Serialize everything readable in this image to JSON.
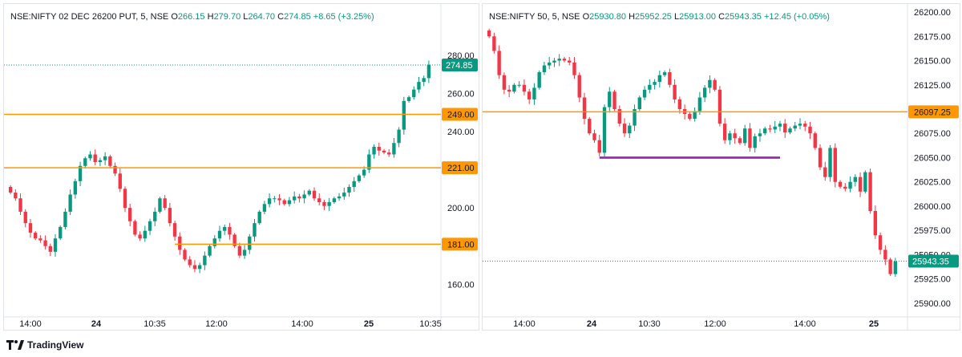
{
  "brand": {
    "name": "TradingView",
    "icon": "tradingview-logo-icon"
  },
  "colors": {
    "up": "#089981",
    "down": "#f23645",
    "level": "#ff9800",
    "axis_text": "#131722",
    "purple": "#9c27b0",
    "purple_fill": "#7e57c2"
  },
  "chart_data": [
    {
      "type": "candlestick",
      "legend": {
        "symbol": "NSE:NIFTY 02 DEC 26200 PUT, 5, NSE",
        "o_label": "O",
        "o": "266.15",
        "h_label": "H",
        "h": "279.70",
        "l_label": "L",
        "l": "264.70",
        "c_label": "C",
        "c": "274.85",
        "change": "+8.65 (+3.25%)"
      },
      "y_ticks": [
        "280.00",
        "260.00",
        "240.00",
        "220.00",
        "200.00",
        "180.00",
        "160.00"
      ],
      "ylim": [
        145,
        290
      ],
      "x_labels": [
        "14:00",
        "24",
        "10:35",
        "12:00",
        "14:00",
        "25",
        "10:35"
      ],
      "last_price": "274.85",
      "levels": [
        {
          "value": 249.0,
          "label": "249.00",
          "full": true
        },
        {
          "value": 221.0,
          "label": "221.00",
          "full": true
        },
        {
          "value": 181.0,
          "label": "181.00",
          "full": false
        }
      ],
      "closes": [
        208,
        205,
        198,
        192,
        187,
        184,
        183,
        180,
        177,
        184,
        190,
        198,
        207,
        214,
        222,
        226,
        228,
        224,
        225,
        227,
        222,
        218,
        210,
        200,
        193,
        186,
        184,
        188,
        193,
        198,
        205,
        200,
        192,
        185,
        178,
        173,
        170,
        168,
        170,
        175,
        180,
        184,
        188,
        190,
        186,
        180,
        175,
        178,
        185,
        192,
        198,
        202,
        205,
        205,
        204,
        202,
        204,
        206,
        205,
        207,
        209,
        205,
        203,
        201,
        203,
        205,
        206,
        208,
        211,
        214,
        217,
        220,
        228,
        232,
        230,
        229,
        228,
        234,
        241,
        256,
        258,
        262,
        266,
        268,
        275
      ]
    },
    {
      "type": "candlestick",
      "legend": {
        "symbol": "NSE:NIFTY 50, 5, NSE",
        "o_label": "O",
        "o": "25930.80",
        "h_label": "H",
        "h": "25952.25",
        "l_label": "L",
        "l": "25913.00",
        "c_label": "C",
        "c": "25943.35",
        "change": "+12.45 (+0.05%)"
      },
      "y_ticks": [
        "26200.00",
        "26175.00",
        "26150.00",
        "26125.00",
        "26100.00",
        "26075.00",
        "26050.00",
        "26025.00",
        "26000.00",
        "25975.00",
        "25950.00",
        "25925.00",
        "25900.00"
      ],
      "ylim": [
        25890,
        26205
      ],
      "x_labels": [
        "14:00",
        "24",
        "10:30",
        "12:00",
        "14:00",
        "25"
      ],
      "last_price": "25943.35",
      "levels": [
        {
          "value": 26097.25,
          "label": "26097.25",
          "full": true
        }
      ],
      "trend_segment": {
        "value": 26050,
        "from_bar": 22,
        "to_bar": 58
      },
      "closes": [
        26175,
        26160,
        26135,
        26120,
        26118,
        26125,
        26125,
        26118,
        26110,
        26122,
        26138,
        26145,
        26148,
        26150,
        26152,
        26150,
        26148,
        26135,
        26112,
        26090,
        26075,
        26068,
        26055,
        26102,
        26118,
        26100,
        26085,
        26075,
        26083,
        26100,
        26112,
        26120,
        26125,
        26128,
        26135,
        26138,
        26125,
        26110,
        26100,
        26095,
        26090,
        26098,
        26112,
        26122,
        26130,
        26120,
        26085,
        26068,
        26075,
        26070,
        26065,
        26080,
        26060,
        26072,
        26075,
        26080,
        26079,
        26082,
        26085,
        26076,
        26080,
        26083,
        26085,
        26082,
        26075,
        26060,
        26040,
        26030,
        26060,
        26025,
        26020,
        26018,
        26025,
        26030,
        26015,
        26035,
        25995,
        25970,
        25955,
        25945,
        25930,
        25943
      ]
    }
  ]
}
